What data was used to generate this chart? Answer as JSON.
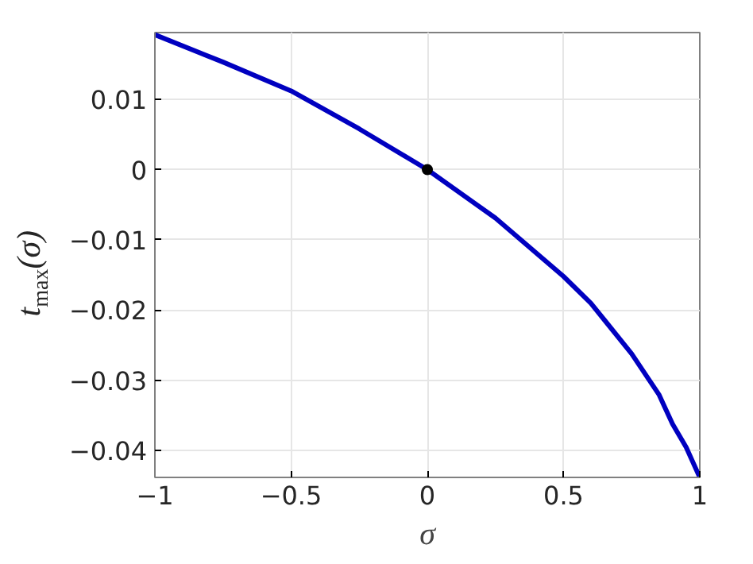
{
  "chart_data": {
    "type": "line",
    "xlabel": "σ",
    "ylabel": "t$_{max}$(σ)",
    "xlim": [
      -1,
      1
    ],
    "ylim": [
      -0.0438,
      0.0195
    ],
    "xticks": [
      -1,
      -0.5,
      0,
      0.5,
      1
    ],
    "yticks": [
      -0.04,
      -0.03,
      -0.02,
      -0.01,
      0,
      0.01
    ],
    "grid": true,
    "series": [
      {
        "color": "#0000c0",
        "x": [
          -1,
          -0.75,
          -0.5,
          -0.25,
          0,
          0.25,
          0.5,
          0.6,
          0.75,
          0.85,
          0.9,
          0.95,
          1
        ],
        "values": [
          0.0192,
          0.0153,
          0.0112,
          0.0058,
          0,
          -0.0069,
          -0.0152,
          -0.019,
          -0.0262,
          -0.032,
          -0.0362,
          -0.0395,
          -0.0438
        ]
      },
      {
        "type": "scatter",
        "color": "#000000",
        "marker": "circle",
        "x": [
          0
        ],
        "values": [
          0
        ]
      }
    ]
  }
}
